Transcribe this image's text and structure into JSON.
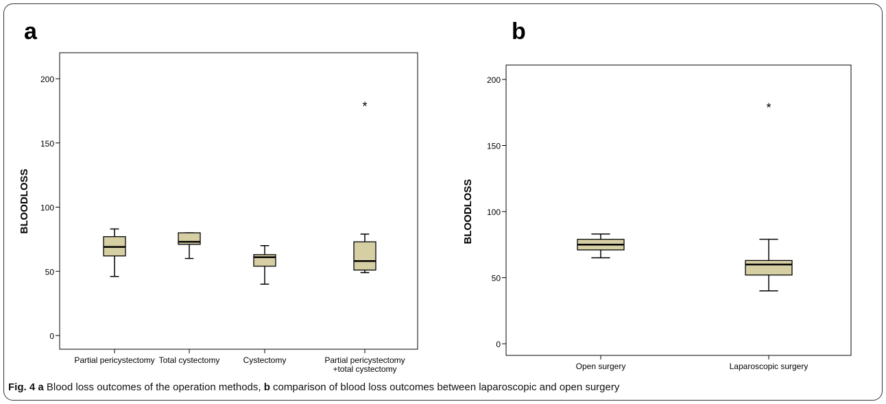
{
  "caption": {
    "fig_label": "Fig. 4",
    "label_a": "a",
    "text_a": " Blood loss outcomes of the operation methods, ",
    "label_b": "b",
    "text_b": " comparison of blood loss outcomes between laparoscopic and open surgery"
  },
  "colors": {
    "box_fill": "#d6cfa4",
    "stroke": "#000000"
  },
  "chart_data": [
    {
      "panel_label": "a",
      "type": "box",
      "ylabel": "BLOODLOSS",
      "ylim": [
        -10,
        210
      ],
      "yticks": [
        0,
        50,
        100,
        150,
        200
      ],
      "categories": [
        "Partial pericystectomy",
        "Total cystectomy",
        "Cystectomy",
        "Partial pericystectomy\n+total cystectomy"
      ],
      "boxes": [
        {
          "min": 46,
          "q1": 62,
          "median": 69,
          "q3": 77,
          "max": 83,
          "outliers": []
        },
        {
          "min": 60,
          "q1": 71,
          "median": 73,
          "q3": 80,
          "max": 80,
          "outliers": []
        },
        {
          "min": 40,
          "q1": 54,
          "median": 61,
          "q3": 63,
          "max": 70,
          "outliers": []
        },
        {
          "min": 49,
          "q1": 51,
          "median": 58,
          "q3": 73,
          "max": 79,
          "outliers": [
            180
          ]
        }
      ]
    },
    {
      "panel_label": "b",
      "type": "box",
      "ylabel": "BLOODLOSS",
      "ylim": [
        -10,
        210
      ],
      "yticks": [
        0,
        50,
        100,
        150,
        200
      ],
      "categories": [
        "Open surgery",
        "Laparoscopic surgery"
      ],
      "boxes": [
        {
          "min": 65,
          "q1": 71,
          "median": 75,
          "q3": 79,
          "max": 83,
          "outliers": []
        },
        {
          "min": 40,
          "q1": 52,
          "median": 60,
          "q3": 63,
          "max": 79,
          "outliers": [
            180
          ]
        }
      ]
    }
  ]
}
